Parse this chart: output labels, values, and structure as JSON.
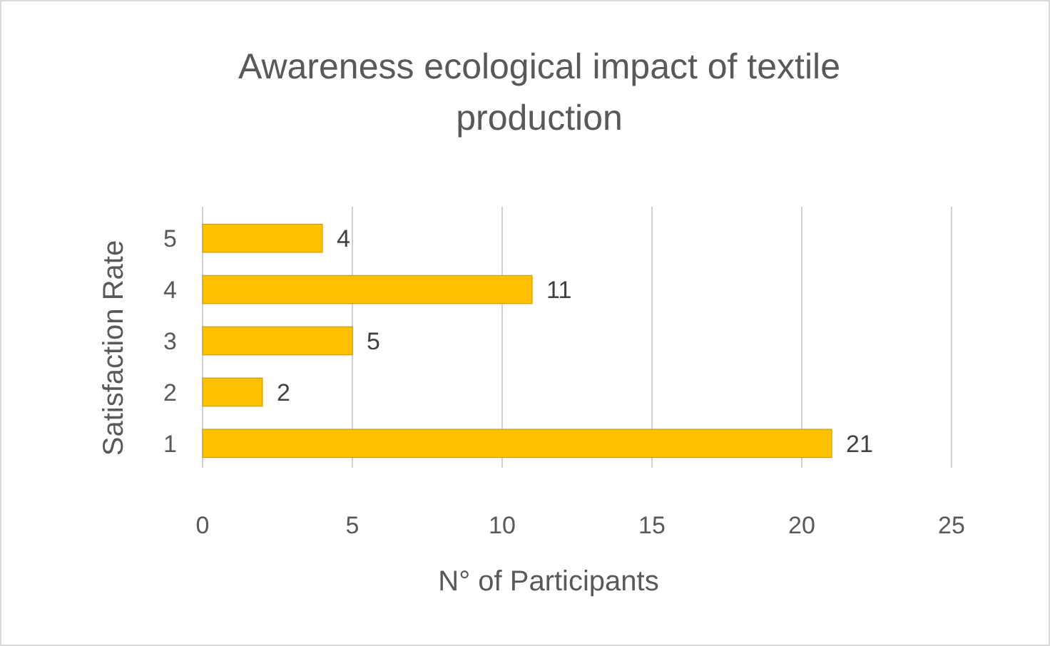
{
  "chart_data": {
    "type": "bar",
    "orientation": "horizontal",
    "title": "Awareness ecological impact of textile production",
    "xlabel": "N° of Participants",
    "ylabel": "Satisfaction Rate",
    "categories": [
      "5",
      "4",
      "3",
      "2",
      "1"
    ],
    "values": [
      4,
      11,
      5,
      2,
      21
    ],
    "color": "#ffc000",
    "xlim": [
      0,
      25
    ],
    "xticks": [
      0,
      5,
      10,
      15,
      20,
      25
    ],
    "grid": "x",
    "data_labels": true
  }
}
